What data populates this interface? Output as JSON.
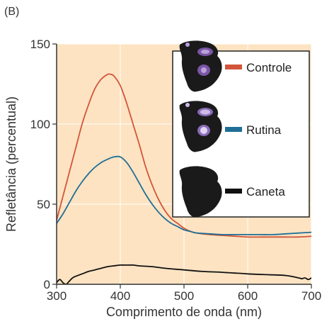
{
  "panel_label": "(B)",
  "chart_data": {
    "type": "line",
    "xlabel": "Comprimento de onda (nm)",
    "ylabel": "Refletância (percentual)",
    "xlim": [
      300,
      700
    ],
    "ylim": [
      0,
      150
    ],
    "xticks": [
      "300",
      "400",
      "500",
      "600",
      "700"
    ],
    "yticks": [
      "0",
      "50",
      "100",
      "150"
    ],
    "grid": true,
    "background_color": "#fde3c2",
    "legend_position": "top-right",
    "series": [
      {
        "name": "Controle",
        "color": "#d2553a",
        "x": [
          300,
          310,
          320,
          330,
          340,
          350,
          360,
          370,
          380,
          385,
          390,
          400,
          410,
          420,
          430,
          440,
          450,
          460,
          470,
          480,
          490,
          500,
          510,
          520,
          540,
          560,
          580,
          600,
          620,
          640,
          660,
          680,
          700
        ],
        "values": [
          40,
          55,
          70,
          85,
          100,
          112,
          122,
          128,
          131,
          131,
          130,
          124,
          113,
          100,
          87,
          73,
          62,
          53,
          46,
          41,
          38,
          35,
          33,
          32,
          31,
          30.5,
          30,
          29.5,
          29.5,
          29.5,
          29.5,
          29.5,
          30
        ]
      },
      {
        "name": "Rutina",
        "color": "#1f6e96",
        "x": [
          300,
          310,
          320,
          330,
          340,
          350,
          360,
          370,
          380,
          390,
          400,
          410,
          420,
          430,
          440,
          450,
          460,
          470,
          480,
          490,
          500,
          510,
          520,
          540,
          560,
          580,
          600,
          620,
          640,
          660,
          680,
          700
        ],
        "values": [
          38,
          44,
          51,
          58,
          64,
          69,
          73,
          76,
          78,
          79.5,
          79.5,
          76,
          70,
          63,
          56,
          50,
          45,
          41,
          38,
          36,
          34,
          33,
          32,
          31.5,
          31,
          31,
          31,
          31,
          31,
          31.5,
          32,
          32.5
        ]
      },
      {
        "name": "Caneta",
        "color": "#111111",
        "x": [
          300,
          305,
          310,
          315,
          320,
          325,
          330,
          340,
          350,
          360,
          370,
          380,
          390,
          400,
          410,
          420,
          430,
          450,
          470,
          500,
          530,
          560,
          600,
          630,
          660,
          680,
          685,
          690,
          695,
          700
        ],
        "values": [
          1,
          3,
          1,
          0,
          2,
          4,
          5,
          6.5,
          8,
          9,
          10,
          11,
          11.5,
          12,
          12,
          12,
          11.5,
          11,
          10,
          9,
          8,
          7.5,
          6.5,
          6,
          5.5,
          4,
          3.5,
          4,
          3,
          4
        ]
      }
    ]
  }
}
